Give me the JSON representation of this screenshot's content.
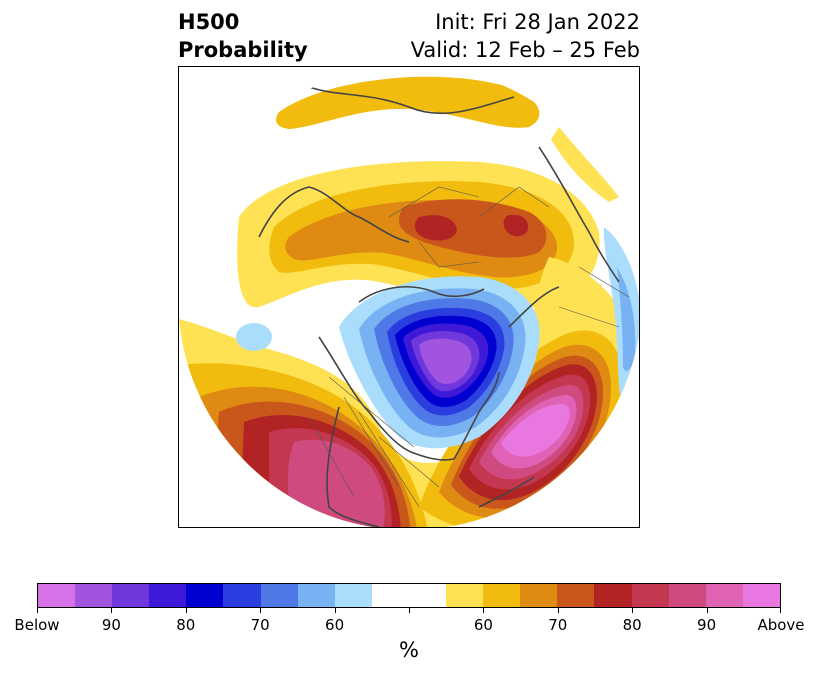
{
  "title": {
    "left_line1": "H500",
    "left_line2": "Probability",
    "right_line1": "Init: Fri 28 Jan 2022",
    "right_line2": "Valid: 12 Feb – 25 Feb"
  },
  "colorbar": {
    "unit": "%",
    "colors": [
      "#d671e8",
      "#a054e0",
      "#7038dc",
      "#3e1ad8",
      "#0000d0",
      "#2a3ee0",
      "#5079e8",
      "#78b2f2",
      "#aadcfc",
      "#ffffff",
      "#ffffff",
      "#ffe253",
      "#f1bc0d",
      "#df8a13",
      "#c9571b",
      "#b22424",
      "#c43750",
      "#cf4a7e",
      "#df62b4",
      "#e878df"
    ],
    "tick_labels": [
      "Below",
      "90",
      "80",
      "70",
      "60",
      "",
      "60",
      "70",
      "80",
      "90",
      "Above"
    ]
  },
  "map": {
    "features": [
      "north-america-above-normal",
      "eastern-canada-below-normal",
      "north-atlantic-above-normal",
      "siberia-above-normal",
      "pacific-below-normal-spot"
    ]
  }
}
